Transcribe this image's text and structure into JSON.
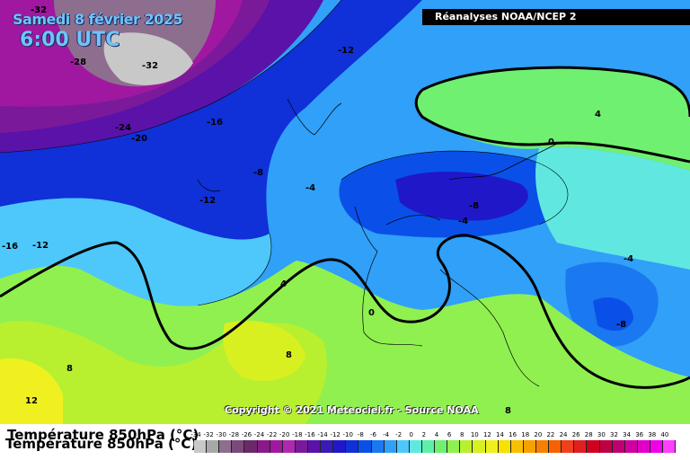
{
  "header": {
    "date": "Samedi 8 février 2025",
    "time": "6:00 UTC",
    "source": "Réanalyses NOAA/NCEP 2"
  },
  "copyright": "Copyright © 2021 Meteociel.fr - Source NOAA",
  "legend": {
    "title": "Température 850hPa (°C)",
    "scale_values": [
      "-34",
      "-32",
      "-30",
      "-28",
      "-26",
      "-24",
      "-22",
      "-20",
      "-18",
      "-16",
      "-14",
      "-12",
      "-10",
      "-8",
      "-6",
      "-4",
      "-2",
      "0",
      "2",
      "4",
      "6",
      "8",
      "10",
      "12",
      "14",
      "16",
      "18",
      "20",
      "22",
      "24",
      "26",
      "28",
      "30",
      "32",
      "34",
      "36",
      "38",
      "40"
    ],
    "colors": [
      "#c8c8c8",
      "#a8a8a8",
      "#8e6e8e",
      "#7a4a7a",
      "#6a2a6a",
      "#8a1a8a",
      "#a018a0",
      "#b028b0",
      "#7a1a9a",
      "#5a12a8",
      "#3a1ab8",
      "#2018c8",
      "#1030d8",
      "#0a50e8",
      "#1a78f0",
      "#30a0f8",
      "#4ec8fa",
      "#60e8e0",
      "#5cf0a8",
      "#70f070",
      "#90f050",
      "#b8f030",
      "#d8f020",
      "#f0f020",
      "#f8e000",
      "#f8c000",
      "#f8a000",
      "#f88000",
      "#f86000",
      "#f04020",
      "#e02020",
      "#d00020",
      "#c00040",
      "#c00070",
      "#d000a0",
      "#e000c8",
      "#f000e8",
      "#ff40ff"
    ]
  },
  "map_labels": [
    {
      "text": "-32"
    },
    {
      "text": "-28"
    },
    {
      "text": "-32"
    },
    {
      "text": "-24"
    },
    {
      "text": "-20"
    },
    {
      "text": "-16"
    },
    {
      "text": "-12"
    },
    {
      "text": "-8"
    },
    {
      "text": "-12"
    },
    {
      "text": "-4"
    },
    {
      "text": "-16"
    },
    {
      "text": "-12"
    },
    {
      "text": "4"
    },
    {
      "text": "8"
    },
    {
      "text": "12"
    },
    {
      "text": "8"
    },
    {
      "text": "0"
    },
    {
      "text": "4"
    },
    {
      "text": "0"
    },
    {
      "text": "-8"
    },
    {
      "text": "-4"
    },
    {
      "text": "-4"
    },
    {
      "text": "-8"
    },
    {
      "text": "8"
    }
  ]
}
